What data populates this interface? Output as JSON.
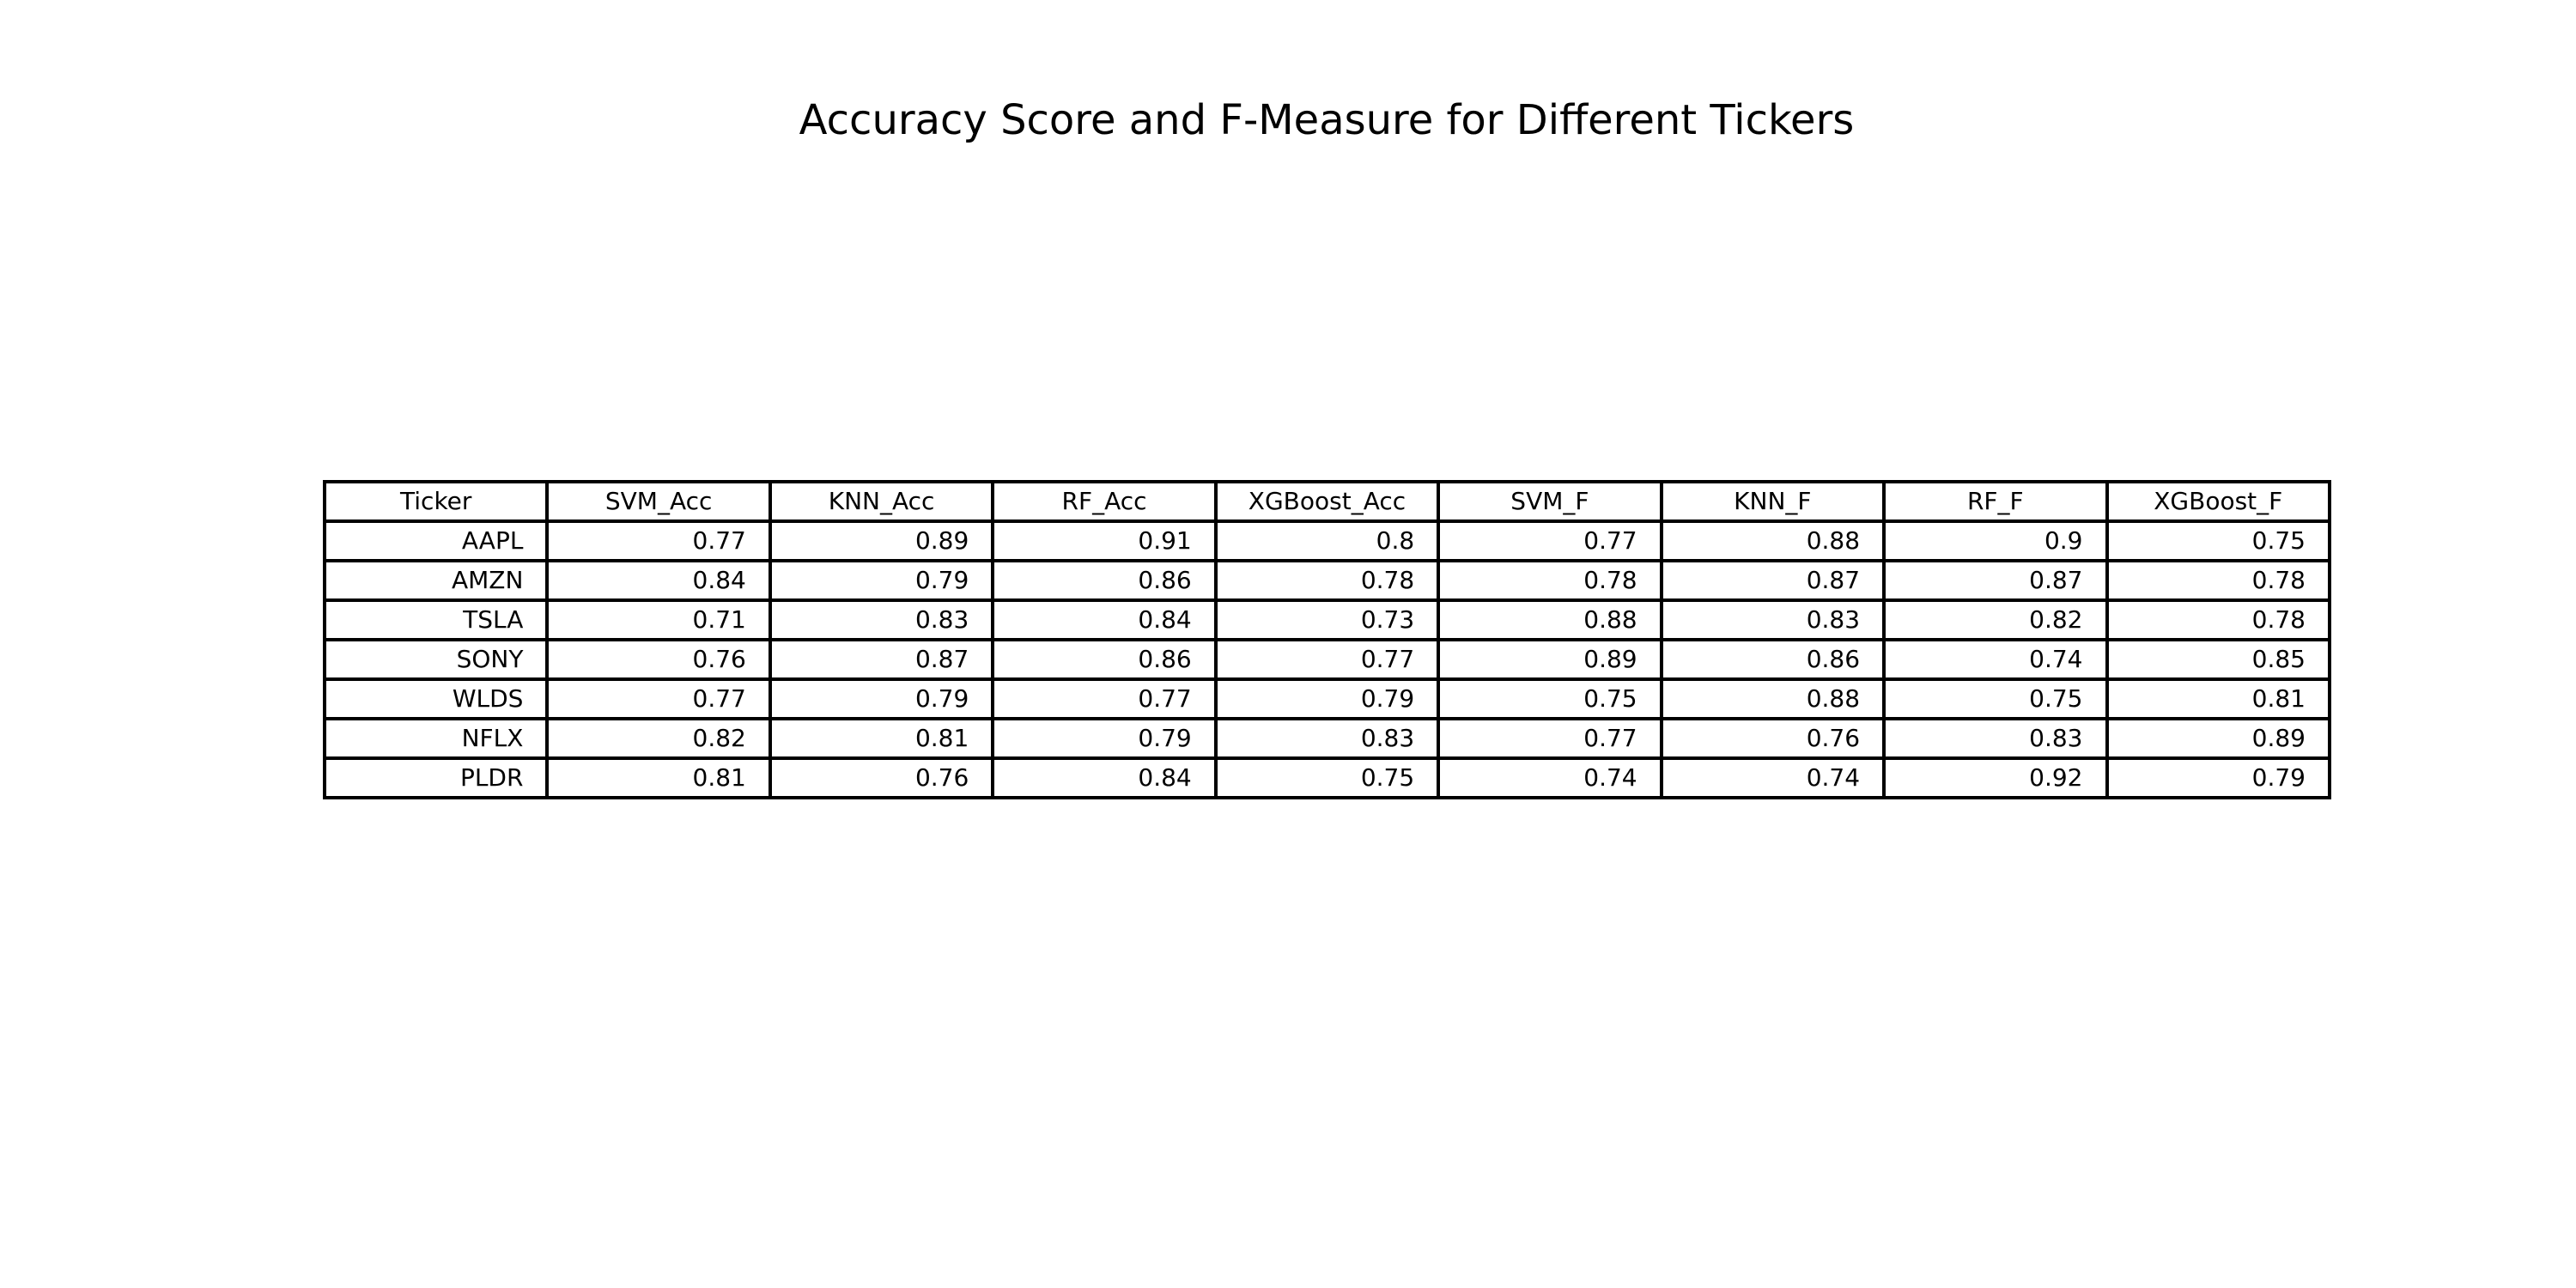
{
  "chart_data": {
    "type": "table",
    "title": "Accuracy Score and F-Measure for Different Tickers",
    "columns": [
      "Ticker",
      "SVM_Acc",
      "KNN_Acc",
      "RF_Acc",
      "XGBoost_Acc",
      "SVM_F",
      "KNN_F",
      "RF_F",
      "XGBoost_F"
    ],
    "rows": [
      [
        "AAPL",
        "0.77",
        "0.89",
        "0.91",
        "0.8",
        "0.77",
        "0.88",
        "0.9",
        "0.75"
      ],
      [
        "AMZN",
        "0.84",
        "0.79",
        "0.86",
        "0.78",
        "0.78",
        "0.87",
        "0.87",
        "0.78"
      ],
      [
        "TSLA",
        "0.71",
        "0.83",
        "0.84",
        "0.73",
        "0.88",
        "0.83",
        "0.82",
        "0.78"
      ],
      [
        "SONY",
        "0.76",
        "0.87",
        "0.86",
        "0.77",
        "0.89",
        "0.86",
        "0.74",
        "0.85"
      ],
      [
        "WLDS",
        "0.77",
        "0.79",
        "0.77",
        "0.79",
        "0.75",
        "0.88",
        "0.75",
        "0.81"
      ],
      [
        "NFLX",
        "0.82",
        "0.81",
        "0.79",
        "0.83",
        "0.77",
        "0.76",
        "0.83",
        "0.89"
      ],
      [
        "PLDR",
        "0.81",
        "0.76",
        "0.84",
        "0.75",
        "0.74",
        "0.74",
        "0.92",
        "0.79"
      ]
    ]
  }
}
